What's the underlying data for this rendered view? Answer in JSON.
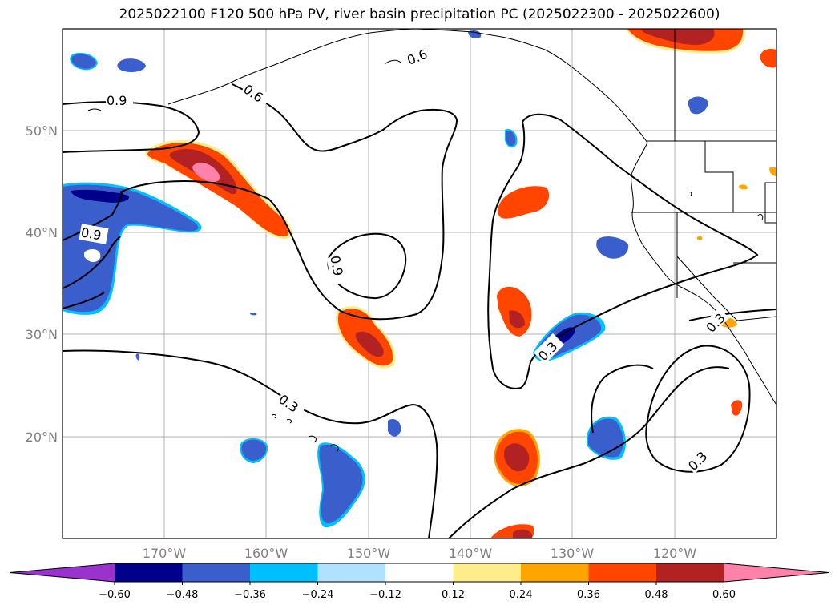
{
  "title": "2025022100 F120 500 hPa PV, river basin precipitation PC (2025022300 - 2025022600)",
  "map": {
    "lat_labels": [
      "50°N",
      "40°N",
      "30°N",
      "20°N"
    ],
    "lon_labels": [
      "170°W",
      "160°W",
      "150°W",
      "140°W",
      "130°W",
      "120°W"
    ],
    "contour_levels": [
      "0.9",
      "0.6",
      "0.9",
      "0.9",
      "0.3",
      "0.3",
      "0.3",
      "0.3"
    ]
  },
  "colorbar": {
    "tick_labels": [
      "−0.60",
      "−0.48",
      "−0.36",
      "−0.24",
      "−0.12",
      "0.12",
      "0.24",
      "0.36",
      "0.48",
      "0.60"
    ],
    "colors": [
      "#9a32cd",
      "#00008b",
      "#3a5fcd",
      "#00bfff",
      "#b0e2ff",
      "#ffffff",
      "#ffec8b",
      "#ffa500",
      "#ff4500",
      "#b22222",
      "#ff82ab"
    ]
  }
}
